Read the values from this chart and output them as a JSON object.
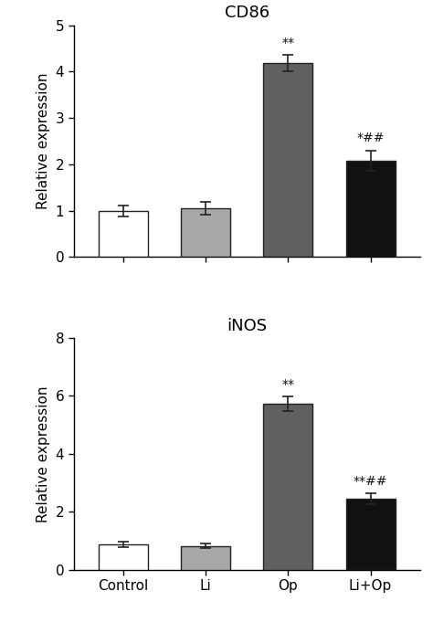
{
  "chart1": {
    "title": "CD86",
    "categories": [
      "Control",
      "Li",
      "Op",
      "Li+Op"
    ],
    "values": [
      1.0,
      1.05,
      4.18,
      2.08
    ],
    "errors": [
      0.12,
      0.13,
      0.18,
      0.22
    ],
    "bar_colors": [
      "#ffffff",
      "#a8a8a8",
      "#606060",
      "#111111"
    ],
    "bar_edgecolors": [
      "#222222",
      "#222222",
      "#222222",
      "#222222"
    ],
    "annotations": [
      "",
      "",
      "**",
      "*##"
    ],
    "ylim": [
      0,
      5
    ],
    "yticks": [
      0,
      1,
      2,
      3,
      4,
      5
    ],
    "ylabel": "Relative expression"
  },
  "chart2": {
    "title": "iNOS",
    "categories": [
      "Control",
      "Li",
      "Op",
      "Li+Op"
    ],
    "values": [
      0.88,
      0.82,
      5.72,
      2.45
    ],
    "errors": [
      0.1,
      0.08,
      0.25,
      0.18
    ],
    "bar_colors": [
      "#ffffff",
      "#a8a8a8",
      "#606060",
      "#111111"
    ],
    "bar_edgecolors": [
      "#222222",
      "#222222",
      "#222222",
      "#222222"
    ],
    "annotations": [
      "",
      "",
      "**",
      "**##"
    ],
    "ylim": [
      0,
      8
    ],
    "yticks": [
      0,
      2,
      4,
      6,
      8
    ],
    "ylabel": "Relative expression"
  },
  "bar_width": 0.6,
  "capsize": 4,
  "title_fontsize": 13,
  "label_fontsize": 11,
  "tick_fontsize": 11,
  "annot_fontsize": 10
}
